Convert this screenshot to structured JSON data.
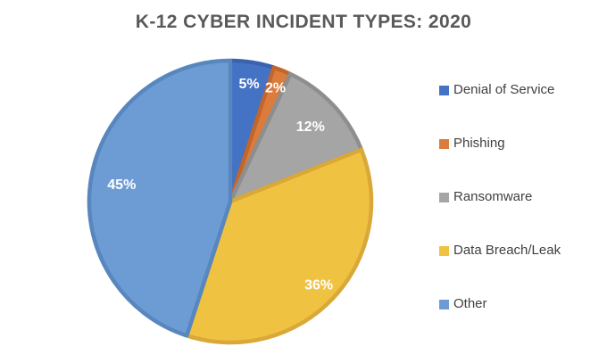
{
  "title": "K-12 CYBER INCIDENT TYPES: 2020",
  "colors": {
    "background": "#FFFFFF",
    "title_text": "#595959",
    "legend_text": "#404040",
    "slice_label_text": "#FFFFFF"
  },
  "chart_data": {
    "type": "pie",
    "title": "K-12 CYBER INCIDENT TYPES: 2020",
    "legend_position": "right",
    "start_angle_deg": 0,
    "direction": "clockwise",
    "total": 100,
    "categories": [
      "Denial of Service",
      "Phishing",
      "Ransomware",
      "Data Breach/Leak",
      "Other"
    ],
    "values": [
      5,
      2,
      12,
      36,
      45
    ],
    "slices": [
      {
        "label": "Denial of Service",
        "value": 5,
        "display": "5%",
        "fill": "#4472C4",
        "border": "#3A62AE",
        "label_r": 0.85
      },
      {
        "label": "Phishing",
        "value": 2,
        "display": "2%",
        "fill": "#DC7C3C",
        "border": "#C2662B",
        "label_r": 0.87
      },
      {
        "label": "Ransomware",
        "value": 12,
        "display": "12%",
        "fill": "#A5A5A5",
        "border": "#8E8E8E",
        "label_r": 0.78
      },
      {
        "label": "Data Breach/Leak",
        "value": 36,
        "display": "36%",
        "fill": "#F0C242",
        "border": "#D9A838",
        "label_r": 0.86
      },
      {
        "label": "Other",
        "value": 45,
        "display": "45%",
        "fill": "#6D9CD4",
        "border": "#5886BF",
        "label_r": 0.78
      }
    ]
  }
}
